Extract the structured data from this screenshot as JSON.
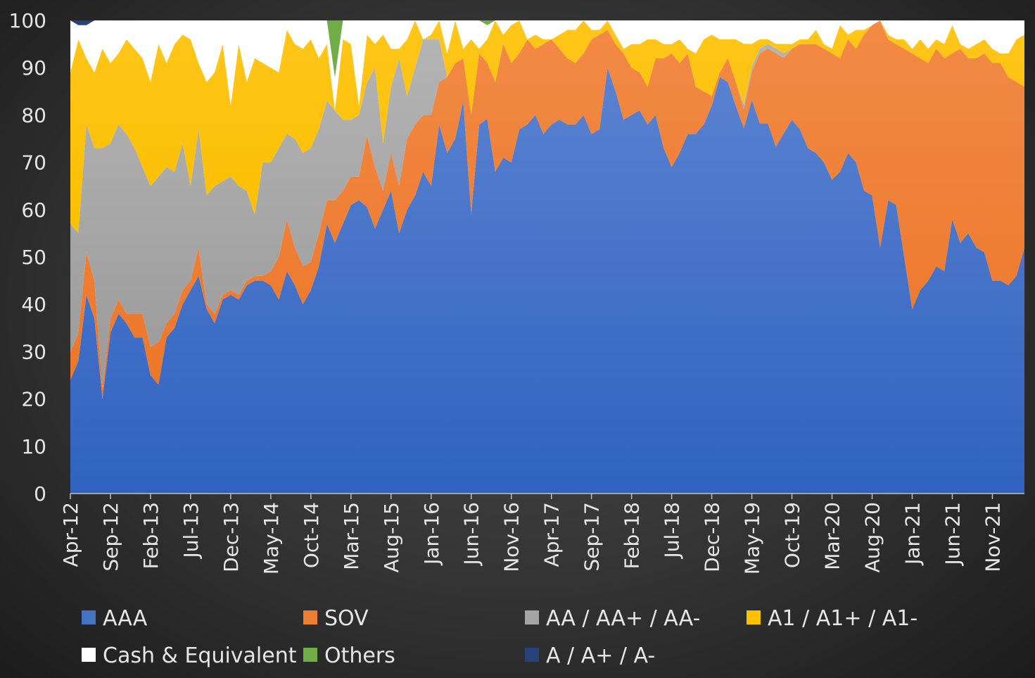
{
  "chart_data": {
    "type": "area",
    "stacked": true,
    "percent_stacked": true,
    "title": "",
    "xlabel": "",
    "ylabel": "",
    "ylim": [
      0,
      100
    ],
    "y_ticks": [
      "0",
      "10",
      "20",
      "30",
      "40",
      "50",
      "60",
      "70",
      "80",
      "90",
      "100"
    ],
    "grid": false,
    "legend_position": "bottom",
    "categories": [
      "Apr-12",
      "May-12",
      "Jun-12",
      "Jul-12",
      "Aug-12",
      "Sep-12",
      "Oct-12",
      "Nov-12",
      "Dec-12",
      "Jan-13",
      "Feb-13",
      "Mar-13",
      "Apr-13",
      "May-13",
      "Jun-13",
      "Jul-13",
      "Aug-13",
      "Sep-13",
      "Oct-13",
      "Nov-13",
      "Dec-13",
      "Jan-14",
      "Feb-14",
      "Mar-14",
      "Apr-14",
      "May-14",
      "Jun-14",
      "Jul-14",
      "Aug-14",
      "Sep-14",
      "Oct-14",
      "Nov-14",
      "Dec-14",
      "Jan-15",
      "Feb-15",
      "Mar-15",
      "Apr-15",
      "May-15",
      "Jun-15",
      "Jul-15",
      "Aug-15",
      "Sep-15",
      "Oct-15",
      "Nov-15",
      "Dec-15",
      "Jan-16",
      "Feb-16",
      "Mar-16",
      "Apr-16",
      "May-16",
      "Jun-16",
      "Jul-16",
      "Aug-16",
      "Sep-16",
      "Oct-16",
      "Nov-16",
      "Dec-16",
      "Jan-17",
      "Feb-17",
      "Mar-17",
      "Apr-17",
      "May-17",
      "Jun-17",
      "Jul-17",
      "Aug-17",
      "Sep-17",
      "Oct-17",
      "Nov-17",
      "Dec-17",
      "Jan-18",
      "Feb-18",
      "Mar-18",
      "Apr-18",
      "May-18",
      "Jun-18",
      "Jul-18",
      "Aug-18",
      "Sep-18",
      "Oct-18",
      "Nov-18",
      "Dec-18",
      "Jan-19",
      "Feb-19",
      "Mar-19",
      "Apr-19",
      "May-19",
      "Jun-19",
      "Jul-19",
      "Aug-19",
      "Sep-19",
      "Oct-19",
      "Nov-19",
      "Dec-19",
      "Jan-20",
      "Feb-20",
      "Mar-20",
      "Apr-20",
      "May-20",
      "Jun-20",
      "Jul-20",
      "Aug-20",
      "Sep-20",
      "Oct-20",
      "Nov-20",
      "Dec-20",
      "Jan-21",
      "Feb-21",
      "Mar-21",
      "Apr-21",
      "May-21",
      "Jun-21",
      "Jul-21",
      "Aug-21",
      "Sep-21",
      "Oct-21",
      "Nov-21",
      "Dec-21",
      "Jan-22",
      "Feb-22",
      "Mar-22"
    ],
    "x_tick_labels": [
      "Apr-12",
      "Sep-12",
      "Feb-13",
      "Jul-13",
      "Dec-13",
      "May-14",
      "Oct-14",
      "Mar-15",
      "Aug-15",
      "Jan-16",
      "Jun-16",
      "Nov-16",
      "Apr-17",
      "Sep-17",
      "Feb-18",
      "Jul-18",
      "Dec-18",
      "May-19",
      "Oct-19",
      "Mar-20",
      "Aug-20",
      "Jan-21",
      "Jun-21",
      "Nov-21"
    ],
    "series": [
      {
        "name": "AAA",
        "color": "#4472C4",
        "values": [
          24,
          28,
          42,
          37,
          20,
          34,
          38,
          36,
          33,
          33,
          25,
          23,
          33,
          35,
          40,
          43,
          46,
          39,
          36,
          41,
          42,
          41,
          44,
          45,
          45,
          44,
          41,
          47,
          44,
          40,
          43,
          48,
          57,
          53,
          57,
          61,
          62,
          60,
          56,
          60,
          64,
          55,
          60,
          63,
          68,
          65,
          78,
          72,
          75,
          83,
          59,
          78,
          80,
          68,
          71,
          70,
          77,
          78,
          80,
          76,
          78,
          79,
          78,
          78,
          80,
          76,
          77,
          90,
          85,
          79,
          80,
          81,
          78,
          80,
          73,
          69,
          72,
          76,
          76,
          78,
          82,
          88,
          87,
          82,
          78,
          84,
          79,
          79,
          74,
          77,
          79,
          77,
          73,
          72,
          70,
          67,
          68,
          72,
          70,
          64,
          63,
          52,
          62,
          61,
          50,
          39,
          43,
          45,
          48,
          47,
          58,
          53,
          55,
          52,
          51,
          45,
          45,
          44,
          46,
          52
        ]
      },
      {
        "name": "SOV",
        "color": "#ED7D31",
        "values": [
          6,
          6,
          9,
          8,
          2,
          3,
          3,
          2,
          5,
          5,
          6,
          9,
          3,
          3,
          3,
          2,
          6,
          1,
          2,
          1,
          1,
          1,
          1,
          1,
          1,
          3,
          9,
          11,
          8,
          8,
          6,
          7,
          5,
          9,
          7,
          6,
          5,
          15,
          13,
          4,
          8,
          10,
          15,
          15,
          12,
          15,
          9,
          16,
          16,
          9,
          21,
          15,
          12,
          19,
          24,
          21,
          16,
          18,
          14,
          19,
          18,
          15,
          14,
          13,
          13,
          20,
          20,
          8,
          10,
          14,
          10,
          8,
          8,
          12,
          19,
          24,
          19,
          17,
          10,
          7,
          2,
          1,
          5,
          5,
          4,
          6,
          15,
          16,
          20,
          16,
          15,
          18,
          22,
          23,
          24,
          27,
          24,
          24,
          24,
          33,
          36,
          48,
          34,
          34,
          44,
          54,
          49,
          46,
          46,
          45,
          35,
          41,
          37,
          40,
          42,
          46,
          46,
          44,
          41,
          34
        ]
      },
      {
        "name": "AA / AA+ / AA-",
        "color": "#A5A5A5",
        "values": [
          27,
          21,
          27,
          28,
          51,
          37,
          37,
          38,
          35,
          31,
          34,
          35,
          33,
          30,
          31,
          20,
          25,
          23,
          27,
          24,
          24,
          23,
          19,
          13,
          24,
          23,
          23,
          18,
          23,
          24,
          24,
          22,
          21,
          19,
          15,
          12,
          13,
          11,
          21,
          10,
          14,
          27,
          9,
          12,
          16,
          16,
          9,
          0,
          0,
          0,
          0,
          0,
          0,
          0,
          0,
          0,
          0,
          0,
          0,
          0,
          0,
          0,
          0,
          0,
          0,
          0,
          0,
          0,
          0,
          0,
          0,
          0,
          0,
          0,
          0,
          0,
          0,
          0,
          0,
          0,
          0,
          0,
          0,
          0,
          1,
          1,
          1,
          1,
          1,
          1,
          0,
          0,
          0,
          0,
          0,
          0,
          0,
          0,
          0,
          0,
          0,
          0,
          0,
          0,
          0,
          0,
          0,
          0,
          0,
          0,
          0,
          0,
          0,
          0,
          0,
          0,
          0,
          0,
          0,
          0
        ]
      },
      {
        "name": "A1 / A1+ / A1-",
        "color": "#FFC000",
        "values": [
          32,
          41,
          14,
          16,
          21,
          17,
          15,
          20,
          21,
          23,
          22,
          28,
          22,
          27,
          23,
          31,
          14,
          24,
          24,
          29,
          15,
          30,
          23,
          33,
          21,
          20,
          16,
          22,
          20,
          22,
          23,
          15,
          12,
          0,
          17,
          16,
          2,
          10,
          5,
          23,
          8,
          2,
          12,
          10,
          0,
          1,
          4,
          5,
          9,
          2,
          16,
          1,
          5,
          13,
          2,
          8,
          7,
          0,
          3,
          1,
          0,
          3,
          6,
          7,
          7,
          2,
          1,
          2,
          2,
          1,
          5,
          6,
          10,
          4,
          3,
          2,
          5,
          1,
          7,
          11,
          13,
          7,
          4,
          9,
          13,
          5,
          2,
          1,
          1,
          2,
          1,
          1,
          1,
          3,
          1,
          1,
          7,
          1,
          4,
          1,
          0,
          0,
          1,
          1,
          2,
          1,
          4,
          3,
          2,
          3,
          6,
          1,
          2,
          3,
          3,
          3,
          2,
          5,
          9,
          11
        ]
      },
      {
        "name": "Cash & Equivalent",
        "color": "#FFFFFF",
        "values": [
          11,
          3,
          7,
          11,
          6,
          9,
          7,
          4,
          6,
          8,
          13,
          5,
          9,
          5,
          3,
          4,
          9,
          13,
          11,
          5,
          18,
          5,
          13,
          8,
          9,
          10,
          11,
          2,
          5,
          6,
          4,
          8,
          5,
          7,
          4,
          5,
          18,
          3,
          5,
          3,
          6,
          6,
          4,
          0,
          4,
          3,
          0,
          7,
          0,
          6,
          4,
          6,
          3,
          0,
          3,
          1,
          0,
          4,
          3,
          4,
          4,
          3,
          2,
          2,
          0,
          2,
          2,
          0,
          3,
          6,
          5,
          5,
          4,
          4,
          5,
          5,
          4,
          6,
          7,
          4,
          3,
          4,
          4,
          4,
          5,
          5,
          4,
          4,
          5,
          5,
          5,
          4,
          4,
          2,
          5,
          6,
          1,
          3,
          2,
          2,
          1,
          0,
          3,
          4,
          4,
          6,
          4,
          6,
          4,
          5,
          1,
          5,
          6,
          5,
          4,
          6,
          7,
          7,
          4,
          3
        ]
      },
      {
        "name": "Others",
        "color": "#70AD47",
        "values": [
          0,
          0,
          0,
          0,
          0,
          0,
          0,
          0,
          0,
          0,
          0,
          0,
          0,
          0,
          0,
          0,
          0,
          0,
          0,
          0,
          0,
          0,
          0,
          0,
          0,
          0,
          0,
          0,
          0,
          0,
          0,
          0,
          0,
          12,
          0,
          0,
          0,
          0,
          0,
          0,
          0,
          0,
          0,
          0,
          0,
          0,
          0,
          0,
          0,
          0,
          0,
          0,
          1,
          0,
          0,
          0,
          0,
          0,
          0,
          0,
          0,
          0,
          0,
          0,
          0,
          0,
          0,
          0,
          0,
          0,
          0,
          0,
          0,
          0,
          0,
          0,
          0,
          0,
          0,
          0,
          0,
          0,
          0,
          0,
          0,
          0,
          0,
          0,
          0,
          0,
          0,
          0,
          0,
          0,
          0,
          0,
          0,
          0,
          0,
          0,
          0,
          0,
          0,
          0,
          0,
          0,
          0,
          0,
          0,
          0,
          0,
          0,
          0,
          0,
          0,
          0,
          0,
          0,
          0,
          0
        ]
      },
      {
        "name": "A / A+ / A-",
        "color": "#264478",
        "values": [
          0,
          1,
          1,
          0,
          0,
          0,
          0,
          0,
          0,
          0,
          0,
          0,
          0,
          0,
          0,
          0,
          0,
          0,
          0,
          0,
          0,
          0,
          0,
          0,
          0,
          0,
          0,
          0,
          0,
          0,
          0,
          0,
          0,
          0,
          0,
          0,
          0,
          0,
          0,
          0,
          0,
          0,
          0,
          0,
          0,
          0,
          0,
          0,
          0,
          0,
          0,
          0,
          0,
          0,
          0,
          0,
          0,
          0,
          0,
          0,
          0,
          0,
          0,
          0,
          0,
          0,
          0,
          0,
          0,
          0,
          0,
          0,
          0,
          0,
          0,
          0,
          0,
          0,
          0,
          0,
          0,
          0,
          0,
          0,
          0,
          0,
          0,
          0,
          0,
          0,
          0,
          0,
          0,
          0,
          0,
          0,
          0,
          0,
          0,
          0,
          0,
          0,
          0,
          0,
          0,
          0,
          0,
          0,
          0,
          0,
          0,
          0,
          0,
          0,
          0,
          0,
          0,
          0,
          0,
          0
        ]
      }
    ]
  }
}
